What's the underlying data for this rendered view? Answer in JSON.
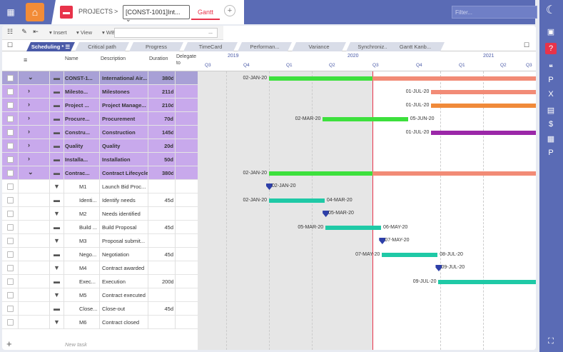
{
  "topbar": {
    "apps_icon": "grid-icon",
    "home_icon": "home-icon",
    "breadcrumb_projects": "PROJECTS",
    "breadcrumb_sep": ">",
    "project_selector": "[CONST-1001]Int...",
    "active_tab": "Gantt",
    "filter_placeholder": "Filter..."
  },
  "toolbar": {
    "insert_label": "Insert",
    "view_label": "View",
    "wbs_label": "WBS",
    "wbs_value": "..."
  },
  "viewtabs": [
    {
      "label": "Scheduling *",
      "active": true
    },
    {
      "label": "Critical path",
      "active": false
    },
    {
      "label": "Progress",
      "active": false
    },
    {
      "label": "TimeCard",
      "active": false
    },
    {
      "label": "Performan...",
      "active": false
    },
    {
      "label": "Variance",
      "active": false
    },
    {
      "label": "Synchroniz...",
      "active": false
    },
    {
      "label": "Gantt Kanb...",
      "active": false
    }
  ],
  "grid": {
    "headers": {
      "name": "Name",
      "description": "Description",
      "duration": "Duration",
      "delegate": "Delegate to"
    },
    "rows": [
      {
        "name": "CONST-1...",
        "description": "International Air...",
        "duration": "380d",
        "type": "summary-top",
        "expand": "⌄"
      },
      {
        "name": "Milesto...",
        "description": "Milestones",
        "duration": "211d",
        "type": "summary",
        "expand": "›"
      },
      {
        "name": "Project ...",
        "description": "Project Manage...",
        "duration": "210d",
        "type": "summary",
        "expand": "›"
      },
      {
        "name": "Procure...",
        "description": "Procurement",
        "duration": "70d",
        "type": "summary",
        "expand": "›"
      },
      {
        "name": "Constru...",
        "description": "Construction",
        "duration": "145d",
        "type": "summary",
        "expand": "›"
      },
      {
        "name": "Quality",
        "description": "Quality",
        "duration": "20d",
        "type": "summary",
        "expand": "›"
      },
      {
        "name": "Installa...",
        "description": "Installation",
        "duration": "50d",
        "type": "summary",
        "expand": "›"
      },
      {
        "name": "Contrac...",
        "description": "Contract Lifecycle",
        "duration": "380d",
        "type": "summary",
        "expand": "⌄"
      },
      {
        "name": "M1",
        "description": "Launch Bid Proc...",
        "duration": "",
        "type": "milestone"
      },
      {
        "name": "Identi...",
        "description": "Identify needs",
        "duration": "45d",
        "type": "task"
      },
      {
        "name": "M2",
        "description": "Needs identified",
        "duration": "",
        "type": "milestone"
      },
      {
        "name": "Build ...",
        "description": "Build Proposal",
        "duration": "45d",
        "type": "task"
      },
      {
        "name": "M3",
        "description": "Proposal submit...",
        "duration": "",
        "type": "milestone"
      },
      {
        "name": "Nego...",
        "description": "Negotiation",
        "duration": "45d",
        "type": "task"
      },
      {
        "name": "M4",
        "description": "Contract awarded",
        "duration": "",
        "type": "milestone"
      },
      {
        "name": "Exec...",
        "description": "Execution",
        "duration": "200d",
        "type": "task"
      },
      {
        "name": "M5",
        "description": "Contract executed",
        "duration": "",
        "type": "milestone"
      },
      {
        "name": "Close...",
        "description": "Close-out",
        "duration": "45d",
        "type": "task"
      },
      {
        "name": "M6",
        "description": "Contract closed",
        "duration": "",
        "type": "milestone"
      }
    ],
    "new_task_label": "New task",
    "add_label": "+"
  },
  "timeline": {
    "years": [
      "2019",
      "2020",
      "2021"
    ],
    "quarters": [
      "Q3",
      "Q4",
      "Q1",
      "Q2",
      "Q3",
      "Q4",
      "Q1",
      "Q2",
      "Q3"
    ]
  },
  "bars": [
    {
      "start": "02-JAN-20",
      "end": "16-JUN-21",
      "color": "#f28b76",
      "progress_color": "#3de03d"
    },
    {
      "start": "01-JUL-20",
      "end": "21-APR-21",
      "color": "#f28b76"
    },
    {
      "start": "01-JUL-20",
      "end": "20-APR-21",
      "color": "#f08a3a"
    },
    {
      "start": "02-MAR-20",
      "end": "05-JUN-20",
      "color": "#3de03d"
    },
    {
      "start": "01-JUL-20",
      "end": "19-JAN-21",
      "color": "#9b27a8"
    },
    {
      "start": "20-JAN-21",
      "end": "16-FEB-21",
      "color": "#1e9bd8"
    },
    {
      "start": "17-FEB-21",
      "end": "27-APR-21",
      "color": "#148f7a"
    },
    {
      "start": "02-JAN-20",
      "end": "16-JUN-21",
      "color": "#f28b76",
      "progress_color": "#3de03d"
    },
    {
      "milestone": "02-JAN-20"
    },
    {
      "start": "02-JAN-20",
      "end": "04-MAR-20",
      "color": "#1fc9a6"
    },
    {
      "milestone": "05-MAR-20"
    },
    {
      "start": "05-MAR-20",
      "end": "06-MAY-20",
      "color": "#1fc9a6"
    },
    {
      "milestone": "07-MAY-20"
    },
    {
      "start": "07-MAY-20",
      "end": "08-JUL-20",
      "color": "#1fc9a6"
    },
    {
      "milestone": "09-JUL-20"
    },
    {
      "start": "09-JUL-20",
      "end": "14-APR-21",
      "color": "#1fc9a6"
    },
    {
      "milestone": "15-APR-21"
    },
    {
      "start": "15-APR-21",
      "end": "16-JUN-21",
      "color": "#1fc9a6"
    },
    {
      "milestone": "17-JUN-21"
    }
  ]
}
